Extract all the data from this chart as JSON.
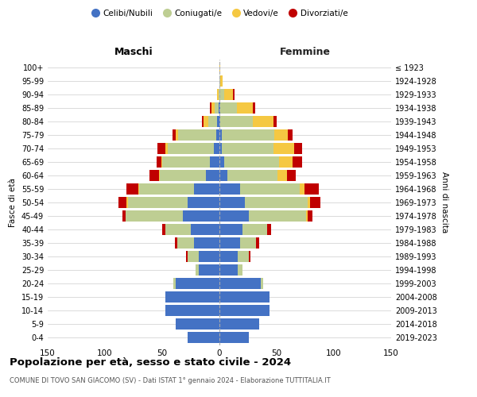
{
  "age_groups": [
    "0-4",
    "5-9",
    "10-14",
    "15-19",
    "20-24",
    "25-29",
    "30-34",
    "35-39",
    "40-44",
    "45-49",
    "50-54",
    "55-59",
    "60-64",
    "65-69",
    "70-74",
    "75-79",
    "80-84",
    "85-89",
    "90-94",
    "95-99",
    "100+"
  ],
  "birth_years": [
    "2019-2023",
    "2014-2018",
    "2009-2013",
    "2004-2008",
    "1999-2003",
    "1994-1998",
    "1989-1993",
    "1984-1988",
    "1979-1983",
    "1974-1978",
    "1969-1973",
    "1964-1968",
    "1959-1963",
    "1954-1958",
    "1949-1953",
    "1944-1948",
    "1939-1943",
    "1934-1938",
    "1929-1933",
    "1924-1928",
    "≤ 1923"
  ],
  "colors": {
    "celibi": "#4472C4",
    "coniugati": "#BECE93",
    "vedovi": "#F5C842",
    "divorziati": "#C00000"
  },
  "maschi": {
    "celibi": [
      28,
      38,
      47,
      47,
      38,
      18,
      18,
      22,
      25,
      32,
      28,
      22,
      12,
      8,
      5,
      3,
      2,
      1,
      0,
      0,
      0
    ],
    "coniugati": [
      0,
      0,
      0,
      0,
      2,
      3,
      10,
      15,
      22,
      50,
      52,
      48,
      40,
      42,
      40,
      33,
      8,
      3,
      1,
      0,
      0
    ],
    "vedovi": [
      0,
      0,
      0,
      0,
      0,
      0,
      0,
      0,
      0,
      0,
      1,
      1,
      1,
      1,
      2,
      2,
      4,
      3,
      1,
      0,
      0
    ],
    "divorziati": [
      0,
      0,
      0,
      0,
      0,
      0,
      1,
      2,
      3,
      3,
      7,
      10,
      8,
      4,
      7,
      3,
      1,
      1,
      0,
      0,
      0
    ]
  },
  "femmine": {
    "celibi": [
      26,
      35,
      44,
      44,
      36,
      16,
      16,
      18,
      20,
      26,
      22,
      18,
      7,
      4,
      2,
      2,
      1,
      1,
      0,
      0,
      0
    ],
    "coniugati": [
      0,
      0,
      0,
      0,
      2,
      4,
      10,
      14,
      22,
      50,
      55,
      52,
      44,
      48,
      45,
      46,
      28,
      14,
      4,
      1,
      0
    ],
    "vedovi": [
      0,
      0,
      0,
      0,
      0,
      0,
      0,
      0,
      0,
      1,
      2,
      4,
      8,
      12,
      18,
      12,
      18,
      14,
      8,
      2,
      1
    ],
    "divorziati": [
      0,
      0,
      0,
      0,
      0,
      0,
      1,
      3,
      3,
      4,
      9,
      13,
      8,
      8,
      7,
      4,
      3,
      2,
      1,
      0,
      0
    ]
  },
  "title": "Popolazione per età, sesso e stato civile - 2024",
  "subtitle": "COMUNE DI TOVO SAN GIACOMO (SV) - Dati ISTAT 1° gennaio 2024 - Elaborazione TUTTITALIA.IT",
  "xlabel_left": "Maschi",
  "xlabel_right": "Femmine",
  "ylabel_left": "Fasce di età",
  "ylabel_right": "Anni di nascita",
  "xlim": 150,
  "legend_labels": [
    "Celibi/Nubili",
    "Coniugati/e",
    "Vedovi/e",
    "Divorziati/e"
  ],
  "background_color": "#ffffff",
  "grid_color": "#cccccc"
}
